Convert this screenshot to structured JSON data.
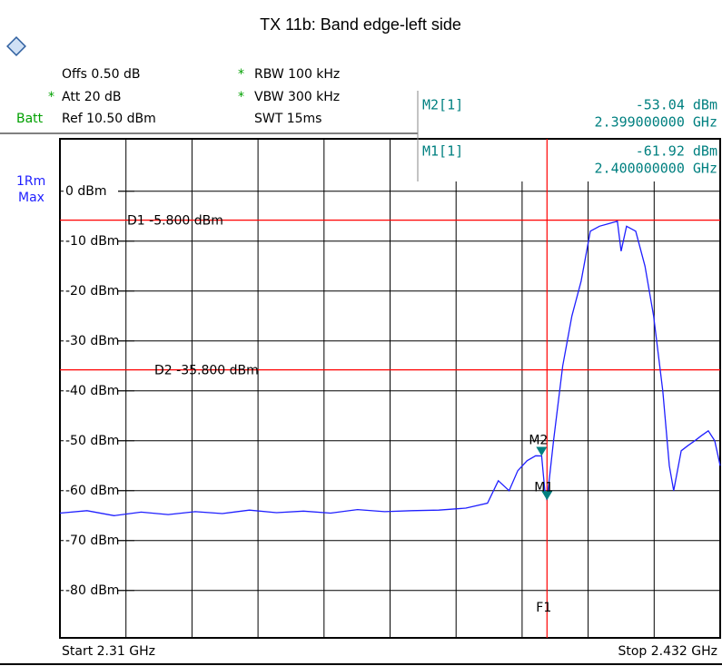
{
  "chart_data": {
    "type": "line",
    "title": "TX 11b: Band edge-left side",
    "settings": {
      "offset": "Offs 0.50 dB",
      "rbw": "RBW 100 kHz",
      "att": "Att 20 dB",
      "vbw": "VBW 300 kHz",
      "batt": "Batt",
      "ref": "Ref 10.50 dBm",
      "swt": "SWT 15ms",
      "star": "*",
      "trace_id": "1Rm",
      "trace_mode": "Max"
    },
    "start_label": "Start 2.31 GHz",
    "stop_label": "Stop 2.432 GHz",
    "xlim": [
      2.31,
      2.432
    ],
    "ylim": [
      -89.5,
      10.5
    ],
    "yticks": [
      {
        "value": 0,
        "label": "0 dBm"
      },
      {
        "value": -10,
        "label": "-10 dBm"
      },
      {
        "value": -20,
        "label": "-20 dBm"
      },
      {
        "value": -30,
        "label": "-30 dBm"
      },
      {
        "value": -40,
        "label": "-40 dBm"
      },
      {
        "value": -50,
        "label": "-50 dBm"
      },
      {
        "value": -60,
        "label": "-60 dBm"
      },
      {
        "value": -70,
        "label": "-70 dBm"
      },
      {
        "value": -80,
        "label": "-80 dBm"
      }
    ],
    "grid": true,
    "series": [
      {
        "name": "1Rm",
        "color": "#1f1fff",
        "x": [
          2.31,
          2.315,
          2.32,
          2.325,
          2.33,
          2.335,
          2.34,
          2.345,
          2.35,
          2.355,
          2.36,
          2.365,
          2.37,
          2.375,
          2.38,
          2.385,
          2.389,
          2.391,
          2.393,
          2.3946,
          2.3963,
          2.3979,
          2.399,
          2.3996,
          2.4,
          2.4012,
          2.4029,
          2.4046,
          2.4063,
          2.408,
          2.4097,
          2.4114,
          2.413,
          2.4137,
          2.4147,
          2.4164,
          2.4181,
          2.4197,
          2.4214,
          2.4226,
          2.4234,
          2.4248,
          2.426,
          2.4273,
          2.4285,
          2.4298,
          2.431,
          2.432
        ],
        "values": [
          -64.5,
          -64,
          -65,
          -64.3,
          -64.8,
          -64.2,
          -64.6,
          -63.9,
          -64.4,
          -64.1,
          -64.5,
          -63.8,
          -64.2,
          -64,
          -63.9,
          -63.5,
          -62.5,
          -58,
          -60,
          -56,
          -54,
          -53,
          -53.04,
          -60,
          -61.92,
          -50,
          -35,
          -25,
          -18,
          -8,
          -7,
          -6.5,
          -6,
          -12,
          -7,
          -8,
          -15,
          -25,
          -40,
          -55,
          -60,
          -52,
          -51,
          -50,
          -49,
          -48,
          -50,
          -55
        ]
      }
    ],
    "display_lines": [
      {
        "name": "D1",
        "value": -5.8,
        "label": "D1  -5.800 dBm",
        "color": "#ff0000"
      },
      {
        "name": "D2",
        "value": -35.8,
        "label": "D2  -35.800 dBm",
        "color": "#ff0000"
      }
    ],
    "frequency_lines": [
      {
        "name": "F1",
        "value": 2.4,
        "color": "#ff0000"
      }
    ],
    "markers": [
      {
        "name": "M2",
        "readout": "M2[1]",
        "x": 2.399,
        "x_label": "2.399000000 GHz",
        "value": -53.04,
        "value_label": "-53.04 dBm"
      },
      {
        "name": "M1",
        "readout": "M1[1]",
        "x": 2.4,
        "x_label": "2.400000000 GHz",
        "value": -61.92,
        "value_label": "-61.92 dBm"
      }
    ],
    "marker_color": "#008080"
  }
}
